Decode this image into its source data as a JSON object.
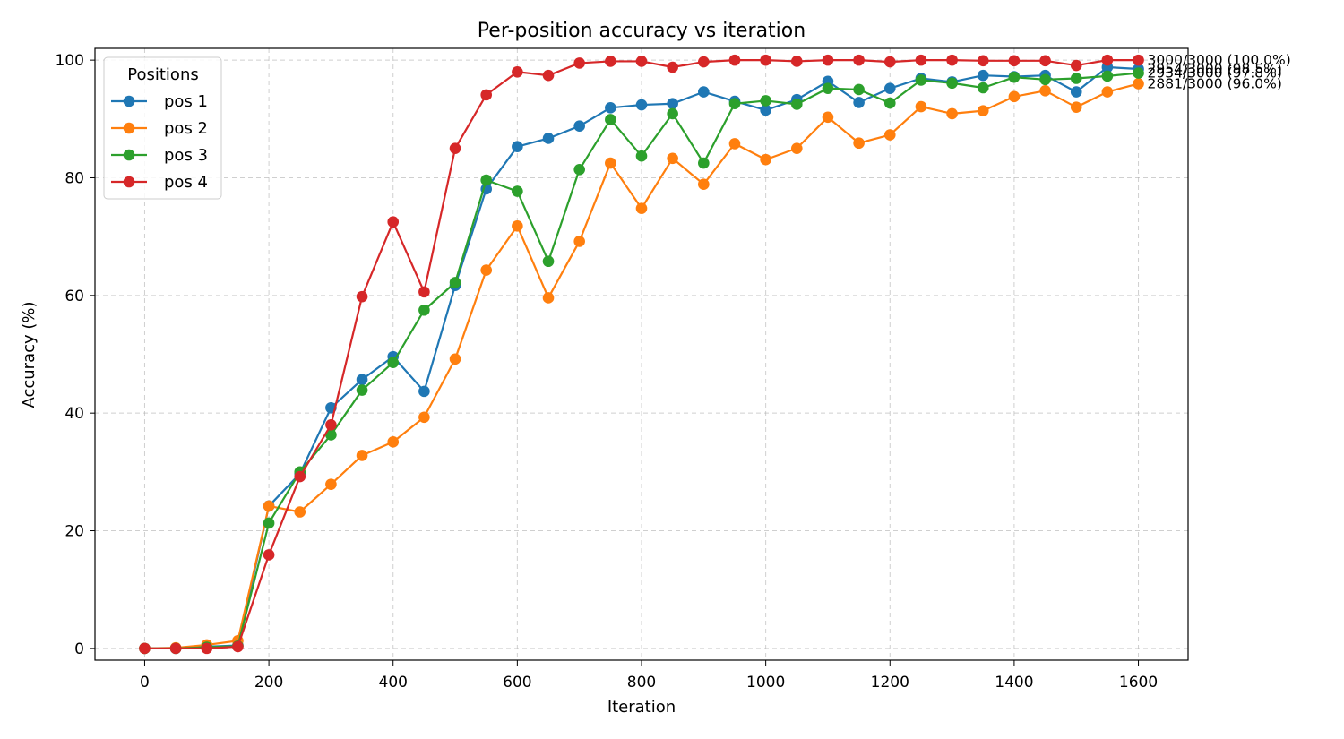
{
  "chart_data": {
    "type": "line",
    "title": "Per-position accuracy vs iteration",
    "xlabel": "Iteration",
    "ylabel": "Accuracy (%)",
    "xlim": [
      -80,
      1680
    ],
    "ylim": [
      -2,
      102
    ],
    "xticks": [
      0,
      200,
      400,
      600,
      800,
      1000,
      1200,
      1400,
      1600
    ],
    "yticks": [
      0,
      20,
      40,
      60,
      80,
      100
    ],
    "grid": true,
    "legend": {
      "title": "Positions",
      "placement": "top-left"
    },
    "x": [
      0,
      50,
      100,
      150,
      200,
      250,
      300,
      350,
      400,
      450,
      500,
      550,
      600,
      650,
      700,
      750,
      800,
      850,
      900,
      950,
      1000,
      1050,
      1100,
      1150,
      1200,
      1250,
      1300,
      1350,
      1400,
      1450,
      1500,
      1550,
      1600
    ],
    "series": [
      {
        "name": "pos 1",
        "color": "#1f77b4",
        "values": [
          0,
          0,
          0.3,
          0.5,
          24.2,
          29.7,
          40.9,
          45.7,
          49.6,
          43.7,
          61.7,
          78.1,
          85.3,
          86.7,
          88.8,
          91.9,
          92.4,
          92.6,
          94.6,
          93.0,
          91.5,
          93.3,
          96.4,
          92.8,
          95.2,
          96.9,
          96.3,
          97.4,
          97.2,
          97.4,
          94.6,
          98.8,
          98.5
        ]
      },
      {
        "name": "pos 2",
        "color": "#ff7f0e",
        "values": [
          0,
          0.1,
          0.6,
          1.3,
          24.2,
          23.2,
          27.9,
          32.8,
          35.1,
          39.3,
          49.2,
          64.3,
          71.8,
          59.6,
          69.2,
          82.5,
          74.8,
          83.3,
          78.9,
          85.8,
          83.1,
          85.0,
          90.3,
          85.9,
          87.3,
          92.1,
          90.9,
          91.4,
          93.8,
          94.8,
          92.0,
          94.6,
          96.0
        ]
      },
      {
        "name": "pos 3",
        "color": "#2ca02c",
        "values": [
          0,
          0,
          0.2,
          0.4,
          21.3,
          30.0,
          36.3,
          43.9,
          48.6,
          57.5,
          62.2,
          79.6,
          77.7,
          65.8,
          81.4,
          89.9,
          83.7,
          90.9,
          82.5,
          92.6,
          93.1,
          92.5,
          95.2,
          95.0,
          92.7,
          96.6,
          96.1,
          95.3,
          97.1,
          96.7,
          96.9,
          97.3,
          97.8
        ]
      },
      {
        "name": "pos 4",
        "color": "#d62728",
        "values": [
          0,
          0,
          0,
          0.3,
          15.9,
          29.2,
          38.0,
          59.8,
          72.5,
          60.6,
          85.0,
          94.1,
          98.0,
          97.4,
          99.5,
          99.8,
          99.8,
          98.8,
          99.7,
          100.0,
          100.0,
          99.8,
          100.0,
          100.0,
          99.7,
          100.0,
          100.0,
          99.9,
          99.9,
          99.9,
          99.1,
          100.0,
          100.0
        ]
      }
    ],
    "annotations": [
      {
        "text": "3000/3000 (100.0%)",
        "x": 1600,
        "y": 100.0
      },
      {
        "text": "2954/3000 (98.5%)",
        "x": 1600,
        "y": 98.5
      },
      {
        "text": "2934/3000 (97.8%)",
        "x": 1600,
        "y": 97.8
      },
      {
        "text": "2881/3000 (96.0%)",
        "x": 1600,
        "y": 96.0
      }
    ]
  }
}
